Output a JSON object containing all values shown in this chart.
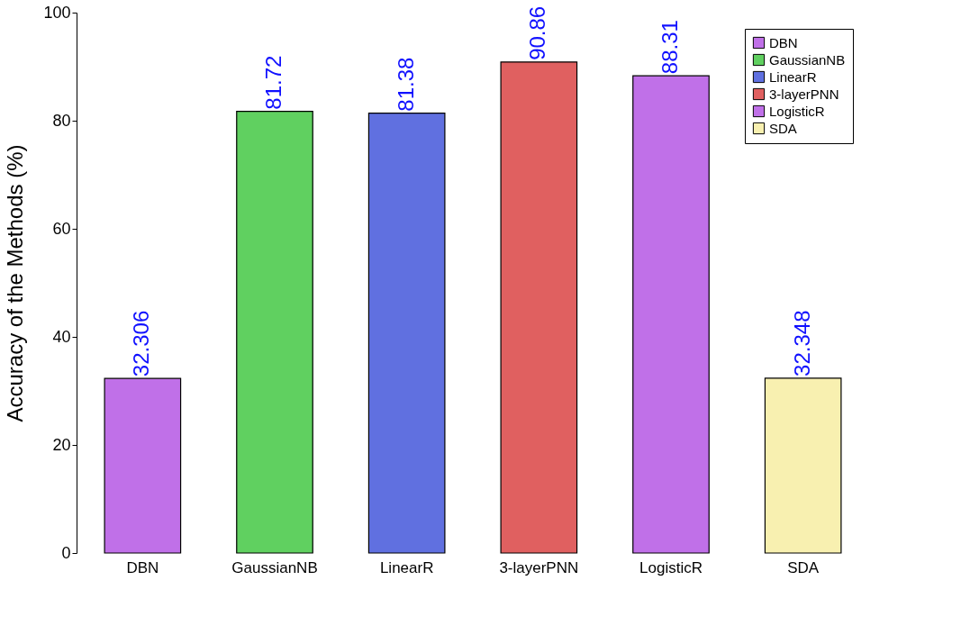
{
  "chart_data": {
    "type": "bar",
    "ylabel": "Accuracy of the Methods (%)",
    "categories": [
      "DBN",
      "GaussianNB",
      "LinearR",
      "3-layerPNN",
      "LogisticR",
      "SDA"
    ],
    "series": [
      {
        "name": "DBN",
        "color": "#c070e8",
        "values": [
          32.306,
          null,
          null,
          null,
          null,
          null
        ]
      },
      {
        "name": "GaussianNB",
        "color": "#60d060",
        "values": [
          null,
          81.72,
          null,
          null,
          null,
          null
        ]
      },
      {
        "name": "LinearR",
        "color": "#6070e0",
        "values": [
          null,
          null,
          81.38,
          null,
          null,
          null
        ]
      },
      {
        "name": "3-layerPNN",
        "color": "#e06060",
        "values": [
          null,
          null,
          null,
          90.86,
          null,
          null
        ]
      },
      {
        "name": "LogisticR",
        "color": "#c070e8",
        "values": [
          null,
          null,
          null,
          null,
          88.31,
          null
        ]
      },
      {
        "name": "SDA",
        "color": "#f8f0b0",
        "values": [
          null,
          null,
          null,
          null,
          null,
          32.348
        ]
      }
    ],
    "ylim": [
      0,
      100
    ],
    "yticks": [
      0,
      20,
      40,
      60,
      80,
      100
    ],
    "data_labels": true,
    "legend": "top right",
    "grid": false
  }
}
